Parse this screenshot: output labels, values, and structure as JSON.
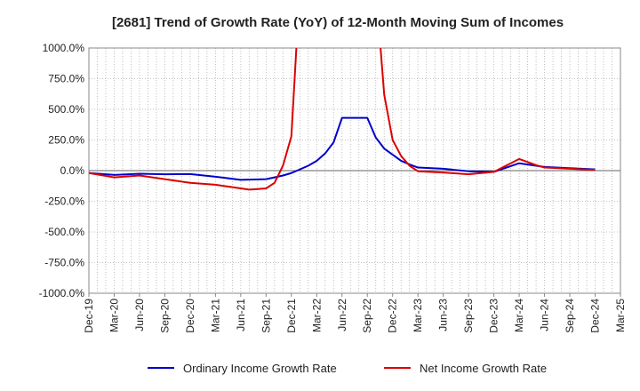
{
  "chart_data": {
    "type": "line",
    "title": "[2681]  Trend of Growth Rate (YoY) of 12-Month Moving Sum of Incomes",
    "xlabel": "",
    "ylabel": "",
    "ylim": [
      -1000,
      1000
    ],
    "yticks": [
      1000,
      750,
      500,
      250,
      0,
      -250,
      -500,
      -750,
      -1000
    ],
    "ytick_labels": [
      "1000.0%",
      "750.0%",
      "500.0%",
      "250.0%",
      "0.0%",
      "-250.0%",
      "-500.0%",
      "-750.0%",
      "-1000.0%"
    ],
    "x_start": "Dec-19",
    "x_end": "Mar-25",
    "xtick_labels": [
      "Dec-19",
      "Mar-20",
      "Jun-20",
      "Sep-20",
      "Dec-20",
      "Mar-21",
      "Jun-21",
      "Sep-21",
      "Dec-21",
      "Mar-22",
      "Jun-22",
      "Sep-22",
      "Dec-22",
      "Mar-23",
      "Jun-23",
      "Sep-23",
      "Dec-23",
      "Mar-24",
      "Jun-24",
      "Sep-24",
      "Dec-24",
      "Mar-25"
    ],
    "grid": true,
    "legend_position": "bottom",
    "series": [
      {
        "name": "Ordinary Income Growth Rate",
        "color": "#0000cc",
        "x": [
          "Dec-19",
          "Mar-20",
          "Jun-20",
          "Sep-20",
          "Dec-20",
          "Mar-21",
          "Jun-21",
          "Sep-21",
          "Oct-21",
          "Nov-21",
          "Dec-21",
          "Jan-22",
          "Feb-22",
          "Mar-22",
          "Apr-22",
          "May-22",
          "Jun-22",
          "Jul-22",
          "Aug-22",
          "Sep-22",
          "Oct-22",
          "Nov-22",
          "Dec-22",
          "Jan-23",
          "Feb-23",
          "Mar-23",
          "Jun-23",
          "Sep-23",
          "Dec-23",
          "Mar-24",
          "Jun-24",
          "Sep-24",
          "Dec-24"
        ],
        "values": [
          -20,
          -35,
          -25,
          -30,
          -28,
          -50,
          -75,
          -70,
          -55,
          -40,
          -20,
          10,
          40,
          80,
          140,
          230,
          430,
          430,
          430,
          430,
          270,
          180,
          130,
          80,
          50,
          25,
          15,
          -5,
          -10,
          60,
          30,
          20,
          10
        ]
      },
      {
        "name": "Net Income Growth Rate",
        "color": "#dd0000",
        "x": [
          "Dec-19",
          "Mar-20",
          "Jun-20",
          "Sep-20",
          "Dec-20",
          "Mar-21",
          "Jun-21",
          "Jul-21",
          "Aug-21",
          "Sep-21",
          "Oct-21",
          "Nov-21",
          "Dec-21",
          "Jan-22",
          "Feb-22",
          "Mar-22",
          "Apr-22",
          "May-22",
          "Jun-22",
          "Jul-22",
          "Aug-22",
          "Sep-22",
          "Oct-22",
          "Nov-22",
          "Dec-22",
          "Jan-23",
          "Feb-23",
          "Mar-23",
          "Jun-23",
          "Sep-23",
          "Dec-23",
          "Feb-24",
          "Mar-24",
          "Apr-24",
          "May-24",
          "Jun-24",
          "Sep-24",
          "Dec-24"
        ],
        "values": [
          -20,
          -55,
          -40,
          -70,
          -100,
          -115,
          -145,
          -155,
          -150,
          -145,
          -100,
          40,
          280,
          1500,
          null,
          null,
          null,
          null,
          null,
          null,
          null,
          null,
          1500,
          620,
          250,
          120,
          40,
          -5,
          -15,
          -30,
          -10,
          60,
          95,
          70,
          45,
          25,
          15,
          5
        ]
      }
    ]
  }
}
